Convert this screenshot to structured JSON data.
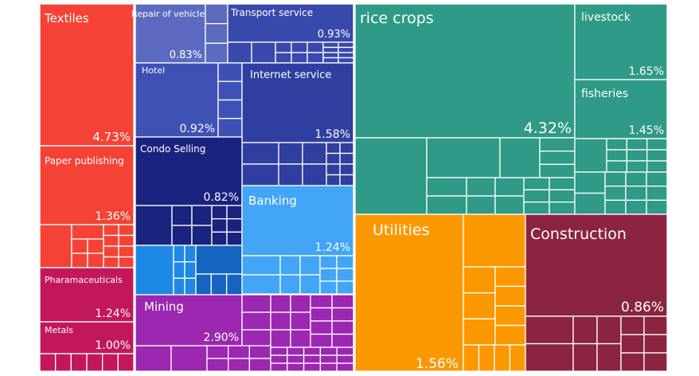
{
  "chart_data": {
    "type": "treemap",
    "tiles": [
      {
        "name": "Textiles",
        "value": "4.73%",
        "color": "#f44336"
      },
      {
        "name": "Paper publishing",
        "value": "1.36%",
        "color": "#f44336"
      },
      {
        "name": "Pharamaceuticals",
        "value": "1.24%",
        "color": "#c2185b"
      },
      {
        "name": "Metals",
        "value": "1.00%",
        "color": "#c2185b"
      },
      {
        "name": "Repair of vehicles",
        "value": "0.83%",
        "color": "#5c6bc0"
      },
      {
        "name": "Transport service",
        "value": "0.93%",
        "color": "#3949ab"
      },
      {
        "name": "Hotel",
        "value": "0.92%",
        "color": "#3f51b5"
      },
      {
        "name": "Internet service",
        "value": "1.58%",
        "color": "#303f9f"
      },
      {
        "name": "Condo Selling",
        "value": "0.82%",
        "color": "#1a237e"
      },
      {
        "name": "Banking",
        "value": "1.24%",
        "color": "#42a5f5"
      },
      {
        "name": "Mining",
        "value": "2.90%",
        "color": "#9c27b0"
      },
      {
        "name": "rice crops",
        "value": "4.32%",
        "color": "#2e9a87"
      },
      {
        "name": "livestock",
        "value": "1.65%",
        "color": "#2e9a87"
      },
      {
        "name": "fisheries",
        "value": "1.45%",
        "color": "#2e9a87"
      },
      {
        "name": "Utilities",
        "value": "1.56%",
        "color": "#fb9800"
      },
      {
        "name": "Construction",
        "value": "0.86%",
        "color": "#8b2440"
      }
    ],
    "unlabeled_colors": {
      "textiles_group": "#f44336",
      "pharma_group": "#c2185b",
      "transport_group": "#3949ab",
      "hotel_group": "#3f51b5",
      "internet_group": "#303f9f",
      "condo_group": "#1a237e",
      "banking_group": "#42a5f5",
      "blue_small": "#1e88e5",
      "blue_dark": "#1565c0",
      "mining_group": "#9c27b0",
      "teal_group": "#2e9a87",
      "utilities_group": "#fb9800",
      "construction_group": "#8b2440"
    }
  }
}
